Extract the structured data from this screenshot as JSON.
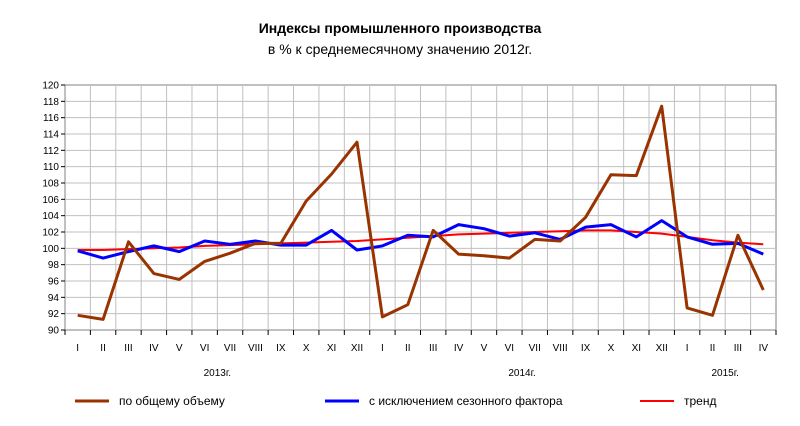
{
  "chart_data": {
    "type": "line",
    "title": "Индексы промышленного производства",
    "subtitle": "в % к среднемесячному значению 2012г.",
    "ylim": [
      90,
      120
    ],
    "yticks": [
      90,
      92,
      94,
      96,
      98,
      100,
      102,
      104,
      106,
      108,
      110,
      112,
      114,
      116,
      118,
      120
    ],
    "grid": true,
    "legend_position": "bottom",
    "categories": [
      "I",
      "II",
      "III",
      "IV",
      "V",
      "VI",
      "VII",
      "VIII",
      "IX",
      "X",
      "XI",
      "XII",
      "I",
      "II",
      "III",
      "IV",
      "V",
      "VI",
      "VII",
      "VIII",
      "IX",
      "X",
      "XI",
      "XII",
      "I",
      "II",
      "III",
      "IV"
    ],
    "years": [
      {
        "label": "2013г.",
        "start": 0,
        "end": 11
      },
      {
        "label": "2014г.",
        "start": 12,
        "end": 23
      },
      {
        "label": "2015г.",
        "start": 24,
        "end": 27
      }
    ],
    "series": [
      {
        "name": "по общему объему",
        "color": "#993300",
        "values": [
          91.8,
          91.3,
          100.8,
          96.9,
          96.2,
          98.4,
          99.4,
          100.6,
          100.6,
          105.8,
          109.1,
          113.0,
          91.6,
          93.1,
          102.2,
          99.3,
          99.1,
          98.8,
          101.1,
          100.9,
          103.8,
          109.0,
          108.9,
          117.4,
          92.7,
          91.8,
          101.6,
          94.9
        ]
      },
      {
        "name": "с исключением сезонного фактора",
        "color": "#0000ff",
        "values": [
          99.7,
          98.8,
          99.6,
          100.3,
          99.6,
          100.9,
          100.5,
          100.9,
          100.4,
          100.4,
          102.2,
          99.8,
          100.3,
          101.6,
          101.4,
          102.9,
          102.4,
          101.5,
          101.9,
          101.1,
          102.6,
          102.9,
          101.4,
          103.4,
          101.4,
          100.5,
          100.6,
          99.3
        ]
      },
      {
        "name": "тренд",
        "color": "#ff0000",
        "values": [
          99.8,
          99.8,
          99.9,
          100.0,
          100.1,
          100.3,
          100.4,
          100.5,
          100.6,
          100.7,
          100.8,
          100.9,
          101.1,
          101.3,
          101.5,
          101.7,
          101.8,
          101.9,
          102.0,
          102.1,
          102.2,
          102.2,
          102.0,
          101.8,
          101.4,
          101.0,
          100.7,
          100.5
        ]
      }
    ]
  }
}
